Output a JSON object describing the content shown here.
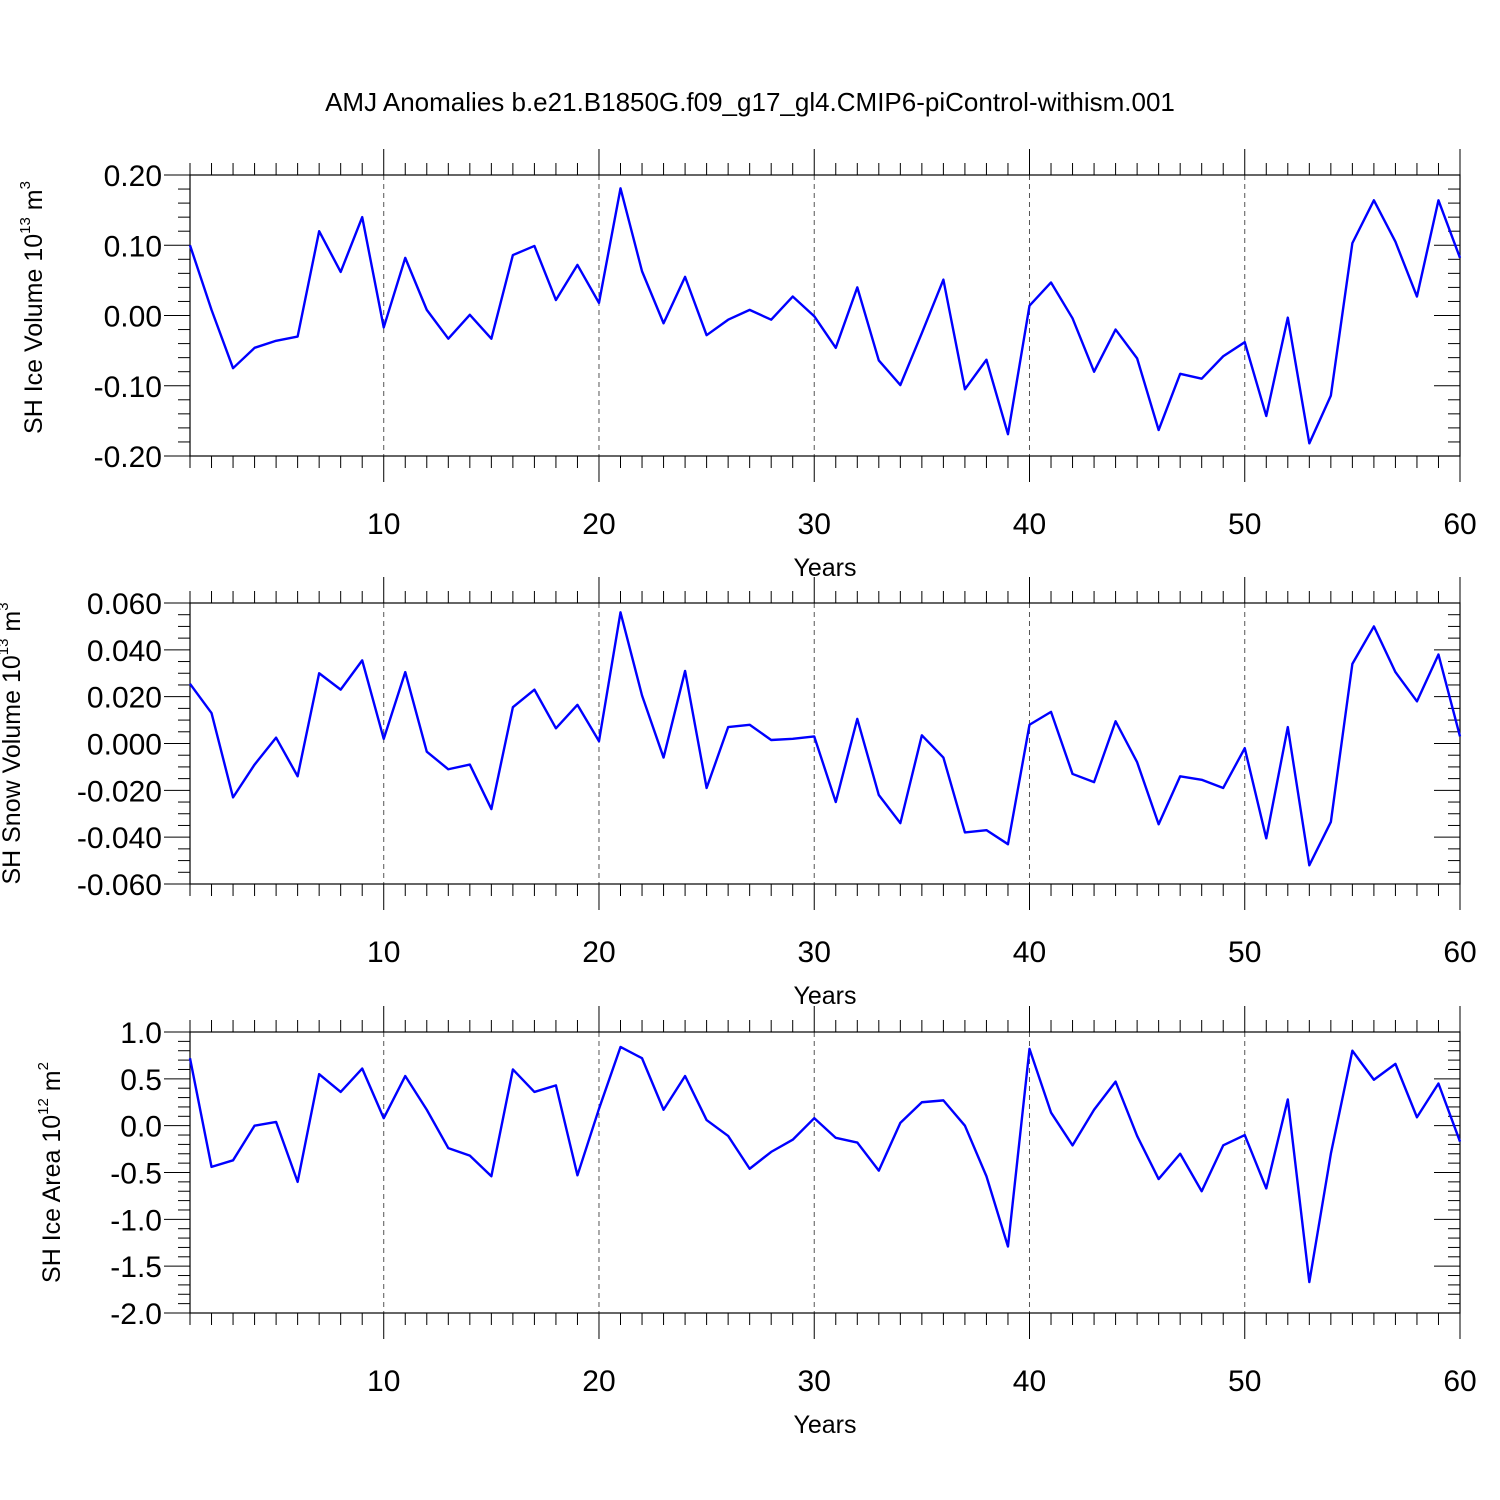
{
  "figure": {
    "title": "AMJ Anomalies b.e21.B1850G.f09_g17_gl4.CMIP6-piControl-withism.001"
  },
  "chart_data": [
    {
      "type": "line",
      "ylabel_main": "SH Ice Volume 10",
      "ylabel_exp": "13",
      "ylabel_unit": " m",
      "ylabel_unit_exp": "3",
      "xlabel": "Years",
      "xlim": [
        1,
        60
      ],
      "ylim": [
        -0.2,
        0.2
      ],
      "x_ticks": [
        10,
        20,
        30,
        40,
        50,
        60
      ],
      "x_tick_labels": [
        "10",
        "20",
        "30",
        "40",
        "50",
        "60"
      ],
      "y_ticks": [
        0.2,
        0.1,
        0.0,
        -0.1,
        -0.2
      ],
      "y_tick_labels": [
        "0.20",
        "0.10",
        "0.00",
        "-0.10",
        "-0.20"
      ],
      "y_minor_step": 0.02,
      "grid": "vertical dashed at major x ticks",
      "color": "#0000ff",
      "x": [
        1,
        2,
        3,
        4,
        5,
        6,
        7,
        8,
        9,
        10,
        11,
        12,
        13,
        14,
        15,
        16,
        17,
        18,
        19,
        20,
        21,
        22,
        23,
        24,
        25,
        26,
        27,
        28,
        29,
        30,
        31,
        32,
        33,
        34,
        35,
        36,
        37,
        38,
        39,
        40,
        41,
        42,
        43,
        44,
        45,
        46,
        47,
        48,
        49,
        50,
        51,
        52,
        53,
        54,
        55,
        56,
        57,
        58,
        59,
        60
      ],
      "values": [
        0.1,
        0.008,
        -0.075,
        -0.046,
        -0.036,
        -0.03,
        0.12,
        0.062,
        0.14,
        -0.017,
        0.082,
        0.008,
        -0.033,
        0.001,
        -0.033,
        0.086,
        0.099,
        0.022,
        0.072,
        0.018,
        0.181,
        0.063,
        -0.011,
        0.055,
        -0.028,
        -0.006,
        0.008,
        -0.006,
        0.027,
        -0.001,
        -0.046,
        0.04,
        -0.064,
        -0.099,
        -0.025,
        0.051,
        -0.105,
        -0.063,
        -0.169,
        0.014,
        0.047,
        -0.004,
        -0.08,
        -0.02,
        -0.061,
        -0.163,
        -0.083,
        -0.09,
        -0.058,
        -0.038,
        -0.143,
        -0.003,
        -0.182,
        -0.114,
        0.103,
        0.164,
        0.105,
        0.027,
        0.164,
        0.082
      ]
    },
    {
      "type": "line",
      "ylabel_main": "SH Snow Volume 10",
      "ylabel_exp": "13",
      "ylabel_unit": " m",
      "ylabel_unit_exp": "3",
      "xlabel": "Years",
      "xlim": [
        1,
        60
      ],
      "ylim": [
        -0.06,
        0.06
      ],
      "x_ticks": [
        10,
        20,
        30,
        40,
        50,
        60
      ],
      "x_tick_labels": [
        "10",
        "20",
        "30",
        "40",
        "50",
        "60"
      ],
      "y_ticks": [
        0.06,
        0.04,
        0.02,
        0.0,
        -0.02,
        -0.04,
        -0.06
      ],
      "y_tick_labels": [
        "0.060",
        "0.040",
        "0.020",
        "0.000",
        "-0.020",
        "-0.040",
        "-0.060"
      ],
      "y_minor_step": 0.005,
      "grid": "vertical dashed at major x ticks",
      "color": "#0000ff",
      "x": [
        1,
        2,
        3,
        4,
        5,
        6,
        7,
        8,
        9,
        10,
        11,
        12,
        13,
        14,
        15,
        16,
        17,
        18,
        19,
        20,
        21,
        22,
        23,
        24,
        25,
        26,
        27,
        28,
        29,
        30,
        31,
        32,
        33,
        34,
        35,
        36,
        37,
        38,
        39,
        40,
        41,
        42,
        43,
        44,
        45,
        46,
        47,
        48,
        49,
        50,
        51,
        52,
        53,
        54,
        55,
        56,
        57,
        58,
        59,
        60
      ],
      "values": [
        0.0255,
        0.013,
        -0.023,
        -0.009,
        0.0025,
        -0.014,
        0.03,
        0.023,
        0.0355,
        0.002,
        0.0305,
        -0.0035,
        -0.011,
        -0.009,
        -0.028,
        0.0155,
        0.023,
        0.0065,
        0.0165,
        0.001,
        0.056,
        0.0205,
        -0.006,
        0.031,
        -0.019,
        0.007,
        0.008,
        0.0015,
        0.002,
        0.003,
        -0.025,
        0.0105,
        -0.022,
        -0.034,
        0.0035,
        -0.006,
        -0.038,
        -0.037,
        -0.043,
        0.008,
        0.0135,
        -0.013,
        -0.0165,
        0.0095,
        -0.008,
        -0.0345,
        -0.014,
        -0.0155,
        -0.019,
        -0.002,
        -0.0405,
        0.007,
        -0.052,
        -0.0335,
        0.034,
        0.05,
        0.0305,
        0.018,
        0.038,
        0.003
      ]
    },
    {
      "type": "line",
      "ylabel_main": "SH Ice Area 10",
      "ylabel_exp": "12",
      "ylabel_unit": " m",
      "ylabel_unit_exp": "2",
      "xlabel": "Years",
      "xlim": [
        1,
        60
      ],
      "ylim": [
        -2.0,
        1.0
      ],
      "x_ticks": [
        10,
        20,
        30,
        40,
        50,
        60
      ],
      "x_tick_labels": [
        "10",
        "20",
        "30",
        "40",
        "50",
        "60"
      ],
      "y_ticks": [
        1.0,
        0.5,
        0.0,
        -0.5,
        -1.0,
        -1.5,
        -2.0
      ],
      "y_tick_labels": [
        "1.0",
        "0.5",
        "0.0",
        "-0.5",
        "-1.0",
        "-1.5",
        "-2.0"
      ],
      "y_minor_step": 0.1,
      "grid": "vertical dashed at major x ticks",
      "color": "#0000ff",
      "x": [
        1,
        2,
        3,
        4,
        5,
        6,
        7,
        8,
        9,
        10,
        11,
        12,
        13,
        14,
        15,
        16,
        17,
        18,
        19,
        20,
        21,
        22,
        23,
        24,
        25,
        26,
        27,
        28,
        29,
        30,
        31,
        32,
        33,
        34,
        35,
        36,
        37,
        38,
        39,
        40,
        41,
        42,
        43,
        44,
        45,
        46,
        47,
        48,
        49,
        50,
        51,
        52,
        53,
        54,
        55,
        56,
        57,
        58,
        59,
        60
      ],
      "values": [
        0.72,
        -0.44,
        -0.37,
        0.0,
        0.04,
        -0.6,
        0.55,
        0.36,
        0.61,
        0.08,
        0.53,
        0.17,
        -0.24,
        -0.32,
        -0.54,
        0.6,
        0.36,
        0.43,
        -0.53,
        0.18,
        0.84,
        0.72,
        0.17,
        0.53,
        0.06,
        -0.11,
        -0.46,
        -0.28,
        -0.15,
        0.08,
        -0.13,
        -0.18,
        -0.48,
        0.03,
        0.25,
        0.27,
        0.0,
        -0.54,
        -1.29,
        0.82,
        0.14,
        -0.21,
        0.17,
        0.47,
        -0.11,
        -0.57,
        -0.3,
        -0.7,
        -0.21,
        -0.1,
        -0.67,
        0.28,
        -1.67,
        -0.3,
        0.8,
        0.49,
        0.66,
        0.09,
        0.45,
        -0.17
      ]
    }
  ]
}
